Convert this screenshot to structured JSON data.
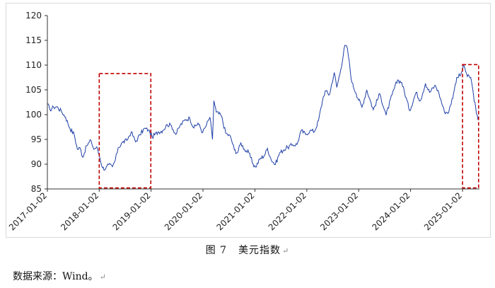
{
  "chart_data": {
    "type": "line",
    "title": "",
    "xlabel": "",
    "ylabel": "",
    "ylim": [
      85,
      120
    ],
    "yticks": [
      85,
      90,
      95,
      100,
      105,
      110,
      115,
      120
    ],
    "xlim": [
      "2017-01-02",
      "2025-05-01"
    ],
    "xtick_labels": [
      "2017-01-02",
      "2018-01-02",
      "2019-01-02",
      "2020-01-02",
      "2021-01-02",
      "2022-01-02",
      "2023-01-02",
      "2024-01-02",
      "2025-01-02"
    ],
    "grid": false,
    "line_color": "#1f3fa6",
    "highlight_color": "#c00000",
    "series": [
      {
        "values": [
          [
            "2017-01-02",
            102.2
          ],
          [
            "2017-01-20",
            101.0
          ],
          [
            "2017-02-15",
            101.5
          ],
          [
            "2017-03-10",
            101.6
          ],
          [
            "2017-04-10",
            100.7
          ],
          [
            "2017-05-10",
            99.5
          ],
          [
            "2017-06-10",
            97.2
          ],
          [
            "2017-07-10",
            96.0
          ],
          [
            "2017-08-01",
            93.0
          ],
          [
            "2017-08-20",
            93.3
          ],
          [
            "2017-09-08",
            91.4
          ],
          [
            "2017-10-05",
            93.7
          ],
          [
            "2017-11-05",
            94.8
          ],
          [
            "2017-11-25",
            93.0
          ],
          [
            "2017-12-15",
            93.5
          ],
          [
            "2018-01-02",
            91.8
          ],
          [
            "2018-01-25",
            89.3
          ],
          [
            "2018-02-15",
            89.0
          ],
          [
            "2018-03-10",
            89.9
          ],
          [
            "2018-04-05",
            89.5
          ],
          [
            "2018-04-25",
            90.8
          ],
          [
            "2018-05-15",
            93.3
          ],
          [
            "2018-06-15",
            94.4
          ],
          [
            "2018-07-15",
            94.8
          ],
          [
            "2018-08-15",
            96.5
          ],
          [
            "2018-09-15",
            94.5
          ],
          [
            "2018-10-15",
            95.9
          ],
          [
            "2018-11-15",
            97.2
          ],
          [
            "2018-12-15",
            96.9
          ],
          [
            "2019-01-10",
            95.5
          ],
          [
            "2019-02-20",
            96.5
          ],
          [
            "2019-03-25",
            96.8
          ],
          [
            "2019-04-25",
            98.0
          ],
          [
            "2019-05-25",
            97.8
          ],
          [
            "2019-06-25",
            96.0
          ],
          [
            "2019-07-25",
            97.8
          ],
          [
            "2019-09-01",
            99.0
          ],
          [
            "2019-10-01",
            99.3
          ],
          [
            "2019-10-30",
            97.3
          ],
          [
            "2019-11-28",
            98.3
          ],
          [
            "2019-12-31",
            96.4
          ],
          [
            "2020-01-20",
            97.5
          ],
          [
            "2020-02-20",
            99.5
          ],
          [
            "2020-03-09",
            95.0
          ],
          [
            "2020-03-19",
            102.8
          ],
          [
            "2020-04-05",
            100.5
          ],
          [
            "2020-05-10",
            99.8
          ],
          [
            "2020-06-10",
            96.3
          ],
          [
            "2020-07-15",
            95.5
          ],
          [
            "2020-08-10",
            92.9
          ],
          [
            "2020-09-01",
            92.3
          ],
          [
            "2020-09-25",
            94.3
          ],
          [
            "2020-10-20",
            93.0
          ],
          [
            "2020-11-20",
            92.3
          ],
          [
            "2020-12-20",
            90.0
          ],
          [
            "2021-01-06",
            89.4
          ],
          [
            "2021-02-05",
            91.0
          ],
          [
            "2021-03-10",
            91.8
          ],
          [
            "2021-03-31",
            93.2
          ],
          [
            "2021-04-25",
            91.0
          ],
          [
            "2021-05-25",
            89.9
          ],
          [
            "2021-06-25",
            92.3
          ],
          [
            "2021-07-25",
            92.9
          ],
          [
            "2021-08-20",
            93.4
          ],
          [
            "2021-09-25",
            93.9
          ],
          [
            "2021-10-25",
            94.0
          ],
          [
            "2021-11-24",
            96.8
          ],
          [
            "2021-12-25",
            96.0
          ],
          [
            "2022-01-25",
            96.8
          ],
          [
            "2022-02-25",
            96.6
          ],
          [
            "2022-03-25",
            98.8
          ],
          [
            "2022-04-28",
            103.6
          ],
          [
            "2022-05-12",
            104.8
          ],
          [
            "2022-06-10",
            104.0
          ],
          [
            "2022-07-14",
            108.5
          ],
          [
            "2022-08-01",
            105.5
          ],
          [
            "2022-08-28",
            109.0
          ],
          [
            "2022-09-27",
            114.0
          ],
          [
            "2022-10-15",
            113.3
          ],
          [
            "2022-11-15",
            106.5
          ],
          [
            "2022-12-15",
            104.3
          ],
          [
            "2023-01-25",
            101.5
          ],
          [
            "2023-02-28",
            105.0
          ],
          [
            "2023-03-25",
            102.8
          ],
          [
            "2023-04-15",
            101.0
          ],
          [
            "2023-05-31",
            104.2
          ],
          [
            "2023-07-14",
            99.9
          ],
          [
            "2023-08-25",
            104.0
          ],
          [
            "2023-10-03",
            107.0
          ],
          [
            "2023-11-01",
            106.5
          ],
          [
            "2023-12-27",
            100.8
          ],
          [
            "2024-02-10",
            104.5
          ],
          [
            "2024-03-10",
            102.8
          ],
          [
            "2024-04-16",
            106.3
          ],
          [
            "2024-05-15",
            104.5
          ],
          [
            "2024-06-25",
            105.9
          ],
          [
            "2024-07-20",
            104.3
          ],
          [
            "2024-08-27",
            100.6
          ],
          [
            "2024-09-27",
            100.5
          ],
          [
            "2024-10-31",
            104.3
          ],
          [
            "2024-11-22",
            107.5
          ],
          [
            "2024-12-20",
            108.0
          ],
          [
            "2025-01-13",
            109.9
          ],
          [
            "2025-02-05",
            107.7
          ],
          [
            "2025-03-01",
            107.5
          ],
          [
            "2025-03-20",
            104.0
          ],
          [
            "2025-04-10",
            100.2
          ],
          [
            "2025-04-21",
            98.9
          ]
        ]
      }
    ],
    "highlight_boxes": [
      {
        "x0": "2018-01-02",
        "x1": "2018-12-31",
        "y0": 85.2,
        "y1": 108.3
      },
      {
        "x0": "2025-01-02",
        "x1": "2025-04-25",
        "y0": 85.2,
        "y1": 110.1
      }
    ]
  },
  "caption": {
    "figure_no": "图 7",
    "title": "美元指数"
  },
  "source_note": "数据来源：Wind。"
}
